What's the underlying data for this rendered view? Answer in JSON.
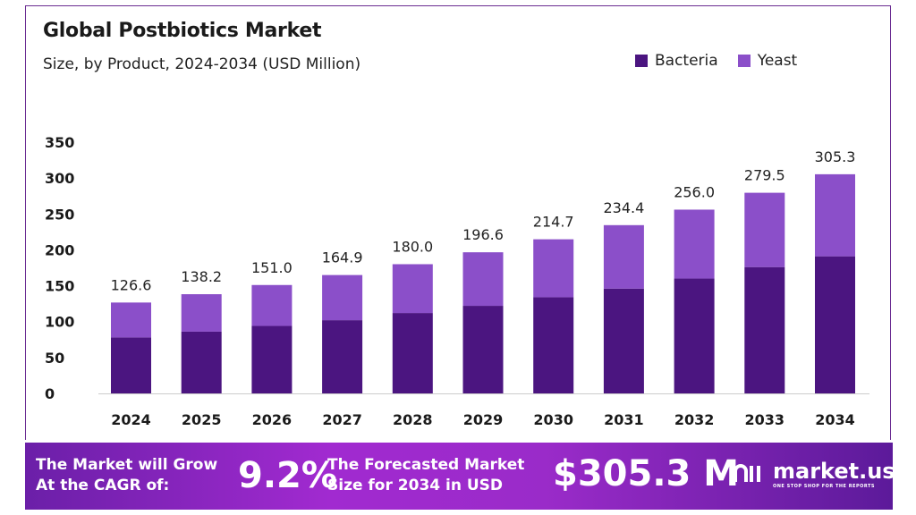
{
  "chart_data": {
    "type": "bar",
    "stacked": true,
    "title": "Global Postbiotics Market",
    "subtitle": "Size, by Product, 2024-2034 (USD Million)",
    "categories": [
      "2024",
      "2025",
      "2026",
      "2027",
      "2028",
      "2029",
      "2030",
      "2031",
      "2032",
      "2033",
      "2034"
    ],
    "series": [
      {
        "name": "Bacteria",
        "color": "#4b1580",
        "values": [
          78,
          86,
          94,
          102,
          112,
          122,
          134,
          146,
          160,
          176,
          191
        ]
      },
      {
        "name": "Yeast",
        "color": "#8b4fc9",
        "values": [
          48.6,
          52.2,
          57.0,
          62.9,
          68.0,
          74.6,
          80.7,
          88.4,
          96.0,
          103.5,
          114.3
        ]
      }
    ],
    "totals": [
      "126.6",
      "138.2",
      "151.0",
      "164.9",
      "180.0",
      "196.6",
      "214.7",
      "234.4",
      "256.0",
      "279.5",
      "305.3"
    ],
    "ylim": [
      0,
      350
    ],
    "yticks": [
      0,
      50,
      100,
      150,
      200,
      250,
      300,
      350
    ],
    "grid": false,
    "legend": "top-right"
  },
  "banner": {
    "cagr_text_1": "The Market will Grow",
    "cagr_text_2": "At the CAGR of:",
    "cagr_value": "9.2%",
    "forecast_text_1": "The Forecasted Market",
    "forecast_text_2": "Size for 2034 in USD",
    "forecast_value": "$305.3 M",
    "brand": "market.us",
    "tagline": "ONE STOP SHOP FOR THE REPORTS"
  }
}
